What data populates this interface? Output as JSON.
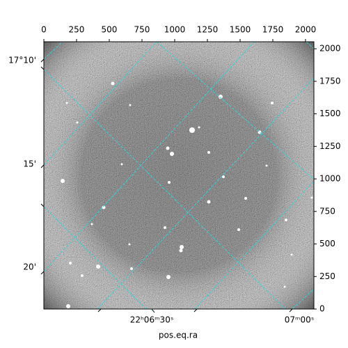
{
  "chart_data": {
    "type": "image",
    "xlabel": "pos.eq.ra",
    "xlim": [
      0,
      2064
    ],
    "xticks": [
      0,
      250,
      500,
      750,
      1000,
      1250,
      1500,
      1750,
      2000
    ],
    "ylim": [
      0,
      2054
    ],
    "yticks": [
      0,
      250,
      500,
      750,
      1000,
      1250,
      1500,
      1750,
      2000
    ],
    "ra_ticks": [
      "22ʰ06ᵐ30ˢ",
      "07ᵐ00ˢ"
    ],
    "dec_ticks": [
      "17°10'",
      "15'",
      "20'"
    ],
    "grid": true,
    "grid_color": "#2fd6d6"
  }
}
